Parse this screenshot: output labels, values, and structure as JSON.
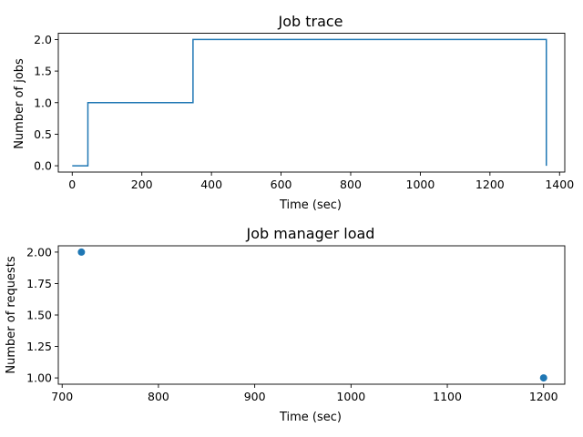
{
  "chart_data": [
    {
      "type": "line",
      "title": "Job trace",
      "xlabel": "Time (sec)",
      "ylabel": "Number of jobs",
      "xlim": [
        -40,
        1415
      ],
      "ylim": [
        -0.1,
        2.1
      ],
      "xticks": [
        0,
        200,
        400,
        600,
        800,
        1000,
        1200,
        1400
      ],
      "xtick_labels": [
        "0",
        "200",
        "400",
        "600",
        "800",
        "1000",
        "1200",
        "1400"
      ],
      "yticks": [
        0.0,
        0.5,
        1.0,
        1.5,
        2.0
      ],
      "ytick_labels": [
        "0.0",
        "0.5",
        "1.0",
        "1.5",
        "2.0"
      ],
      "grid": false,
      "series": [
        {
          "color": "#1f77b4",
          "x": [
            0,
            45,
            45,
            347,
            347,
            1362,
            1362
          ],
          "y": [
            0,
            0,
            1,
            1,
            2,
            2,
            0
          ]
        }
      ]
    },
    {
      "type": "scatter",
      "title": "Job manager load",
      "xlabel": "Time (sec)",
      "ylabel": "Number of requests",
      "xlim": [
        696,
        1222
      ],
      "ylim": [
        0.95,
        2.05
      ],
      "xticks": [
        700,
        800,
        900,
        1000,
        1100,
        1200
      ],
      "xtick_labels": [
        "700",
        "800",
        "900",
        "1000",
        "1100",
        "1200"
      ],
      "yticks": [
        1.0,
        1.25,
        1.5,
        1.75,
        2.0
      ],
      "ytick_labels": [
        "1.00",
        "1.25",
        "1.50",
        "1.75",
        "2.00"
      ],
      "grid": false,
      "series": [
        {
          "color": "#1f77b4",
          "x": [
            720,
            1200
          ],
          "y": [
            2.0,
            1.0
          ]
        }
      ]
    }
  ]
}
